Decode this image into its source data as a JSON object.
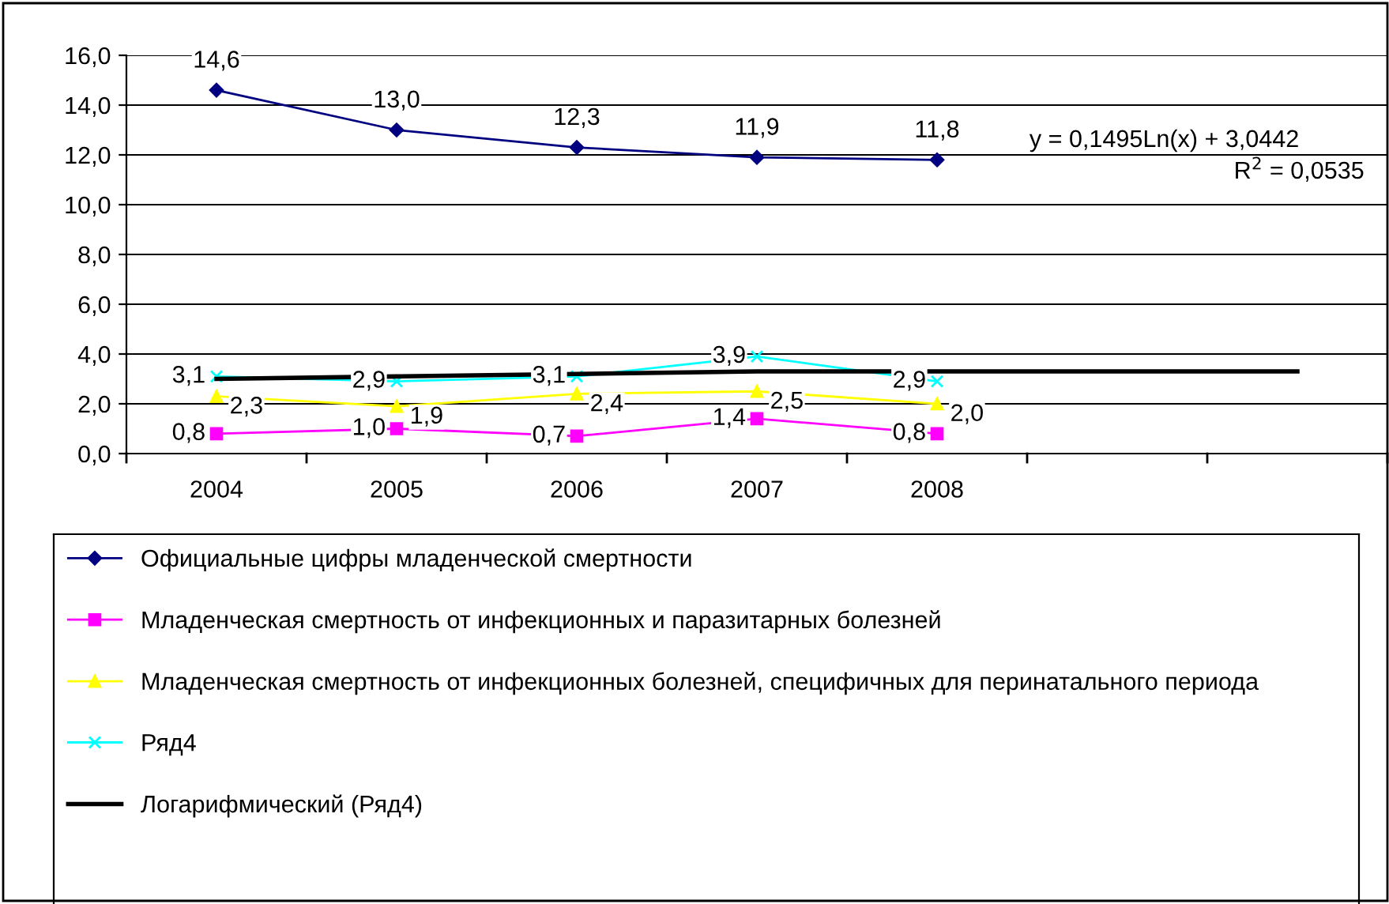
{
  "chart_data": {
    "type": "line",
    "categories": [
      "2004",
      "2005",
      "2006",
      "2007",
      "2008",
      null,
      null
    ],
    "series": [
      {
        "name": "Официальные цифры младенческой смертности",
        "color": "#000080",
        "marker": "diamond",
        "values": [
          14.6,
          13.0,
          12.3,
          11.9,
          11.8,
          null,
          null
        ],
        "value_labels": [
          "14,6",
          "13,0",
          "12,3",
          "11,9",
          "11,8",
          null,
          null
        ]
      },
      {
        "name": "Младенческая смертность от инфекционных и паразитарных болезней",
        "color": "#ff00ff",
        "marker": "square",
        "values": [
          0.8,
          1.0,
          0.7,
          1.4,
          0.8,
          null,
          null
        ],
        "value_labels": [
          "0,8",
          "1,0",
          "0,7",
          "1,4",
          "0,8",
          null,
          null
        ]
      },
      {
        "name": "Младенческая смертность от инфекционных болезней, специфичных для перинатального периода",
        "color": "#ffff00",
        "marker": "triangle",
        "values": [
          2.3,
          1.9,
          2.4,
          2.5,
          2.0,
          null,
          null
        ],
        "value_labels": [
          "2,3",
          "1,9",
          "2,4",
          "2,5",
          "2,0",
          null,
          null
        ]
      },
      {
        "name": "Ряд4",
        "color": "#00ffff",
        "marker": "cross",
        "values": [
          3.1,
          2.9,
          3.1,
          3.9,
          2.9,
          null,
          null
        ],
        "value_labels": [
          "3,1",
          "2,9",
          "3,1",
          "3,9",
          "2,9",
          null,
          null
        ]
      },
      {
        "name": "Логарифмический (Ряд4)",
        "color": "#000000",
        "marker": "none",
        "values": [
          3.0,
          3.1,
          3.2,
          3.3,
          3.3,
          3.3,
          3.3
        ]
      }
    ],
    "ylim": [
      0,
      16
    ],
    "yticks": [
      {
        "value": 0,
        "label": "0,0"
      },
      {
        "value": 2,
        "label": "2,0"
      },
      {
        "value": 4,
        "label": "4,0"
      },
      {
        "value": 6,
        "label": "6,0"
      },
      {
        "value": 8,
        "label": "8,0"
      },
      {
        "value": 10,
        "label": "10,0"
      },
      {
        "value": 12,
        "label": "12,0"
      },
      {
        "value": 14,
        "label": "14,0"
      },
      {
        "value": 16,
        "label": "16,0"
      }
    ],
    "grid": "y",
    "legend": "bottom",
    "annotations": [
      "y = 0,1495Ln(x) + 3,0442",
      "R$^{2}$ = 0,0535"
    ]
  }
}
